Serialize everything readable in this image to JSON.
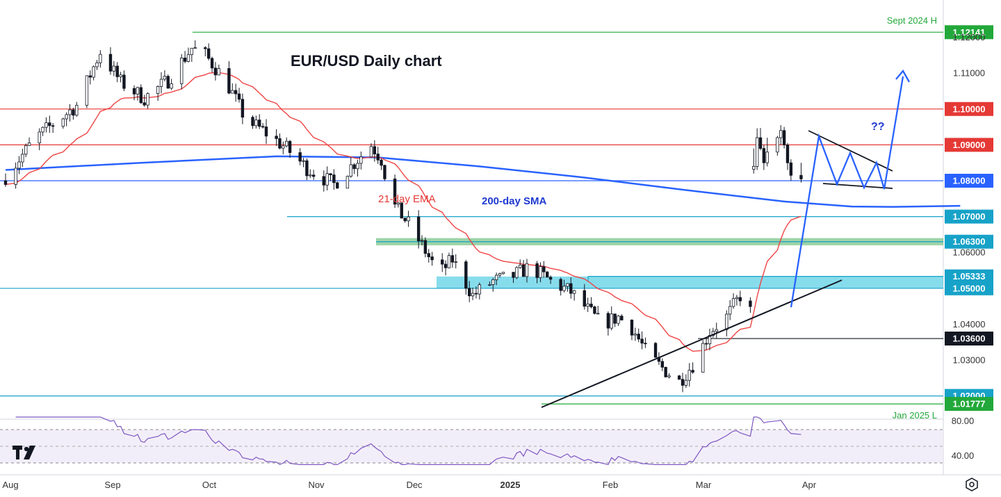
{
  "chart_data": {
    "type": "candlestick",
    "title": "EUR/USD Daily chart",
    "x_labels": [
      "Aug",
      "Sep",
      "Oct",
      "Nov",
      "Dec",
      "2025",
      "Feb",
      "Mar",
      "Apr"
    ],
    "y_ticks": [
      "1.11000",
      "1.06000",
      "1.04000",
      "1.03000"
    ],
    "y_ticks_partial": [
      "1.12000"
    ],
    "rsi_ticks": [
      "80.00",
      "40.00"
    ],
    "indicators": [
      {
        "name": "21-day EMA",
        "color": "#ef4444"
      },
      {
        "name": "200-day SMA",
        "color": "#2962ff"
      }
    ],
    "levels": [
      {
        "value": 1.12141,
        "label": "1.12141",
        "color": "#22a83a",
        "annotation": "Sept 2024 H"
      },
      {
        "value": 1.1,
        "label": "1.10000",
        "color": "#e53935"
      },
      {
        "value": 1.09,
        "label": "1.09000",
        "color": "#e53935"
      },
      {
        "value": 1.08,
        "label": "1.08000",
        "color": "#2962ff"
      },
      {
        "value": 1.07,
        "label": "1.07000",
        "color": "#17a2c8"
      },
      {
        "value": 1.063,
        "label": "1.06300",
        "color": "#17a2c8"
      },
      {
        "value": 1.05333,
        "label": "1.05333",
        "color": "#17a2c8"
      },
      {
        "value": 1.05,
        "label": "1.05000",
        "color": "#17a2c8"
      },
      {
        "value": 1.036,
        "label": "1.03600",
        "color": "#131722"
      },
      {
        "value": 1.02,
        "label": "1.02000",
        "color": "#17a2c8"
      },
      {
        "value": 1.01777,
        "label": "1.01777",
        "color": "#22a83a",
        "annotation": "Jan 2025 L"
      }
    ],
    "zones": [
      {
        "from": 1.062,
        "to": 1.064,
        "color": "#7cc48a"
      },
      {
        "from": 1.05,
        "to": 1.0533,
        "color": "#5fd0e6"
      }
    ],
    "projection_label": "??",
    "ohlc_2025_03": [
      {
        "x": "2025-03-10",
        "o": 1.0832,
        "h": 1.089,
        "l": 1.082,
        "c": 1.084
      },
      {
        "x": "2025-03-11",
        "o": 1.084,
        "h": 1.0946,
        "l": 1.083,
        "c": 1.092
      },
      {
        "x": "2025-03-12",
        "o": 1.092,
        "h": 1.0947,
        "l": 1.0885,
        "c": 1.089
      },
      {
        "x": "2025-03-13",
        "o": 1.089,
        "h": 1.09,
        "l": 1.083,
        "c": 1.085
      },
      {
        "x": "2025-03-14",
        "o": 1.085,
        "h": 1.092,
        "l": 1.084,
        "c": 1.088
      },
      {
        "x": "2025-03-17",
        "o": 1.088,
        "h": 1.0925,
        "l": 1.087,
        "c": 1.092
      },
      {
        "x": "2025-03-18",
        "o": 1.092,
        "h": 1.0955,
        "l": 1.09,
        "c": 1.094
      },
      {
        "x": "2025-03-19",
        "o": 1.094,
        "h": 1.095,
        "l": 1.089,
        "c": 1.09
      },
      {
        "x": "2025-03-20",
        "o": 1.09,
        "h": 1.0905,
        "l": 1.083,
        "c": 1.085
      },
      {
        "x": "2025-03-21",
        "o": 1.085,
        "h": 1.086,
        "l": 1.08,
        "c": 1.0815
      },
      {
        "x": "2025-03-24",
        "o": 1.0815,
        "h": 1.085,
        "l": 1.0795,
        "c": 1.0805
      }
    ],
    "colors": {
      "up": "#ffffff",
      "down": "#131722",
      "wick": "#131722",
      "projection": "#2962ff",
      "rsi": "#7e57c2"
    }
  },
  "labels": {
    "ema": "21-day EMA",
    "sma": "200-day SMA",
    "sept_high": "Sept 2024 H",
    "jan_low": "Jan 2025 L",
    "qq": "??"
  }
}
